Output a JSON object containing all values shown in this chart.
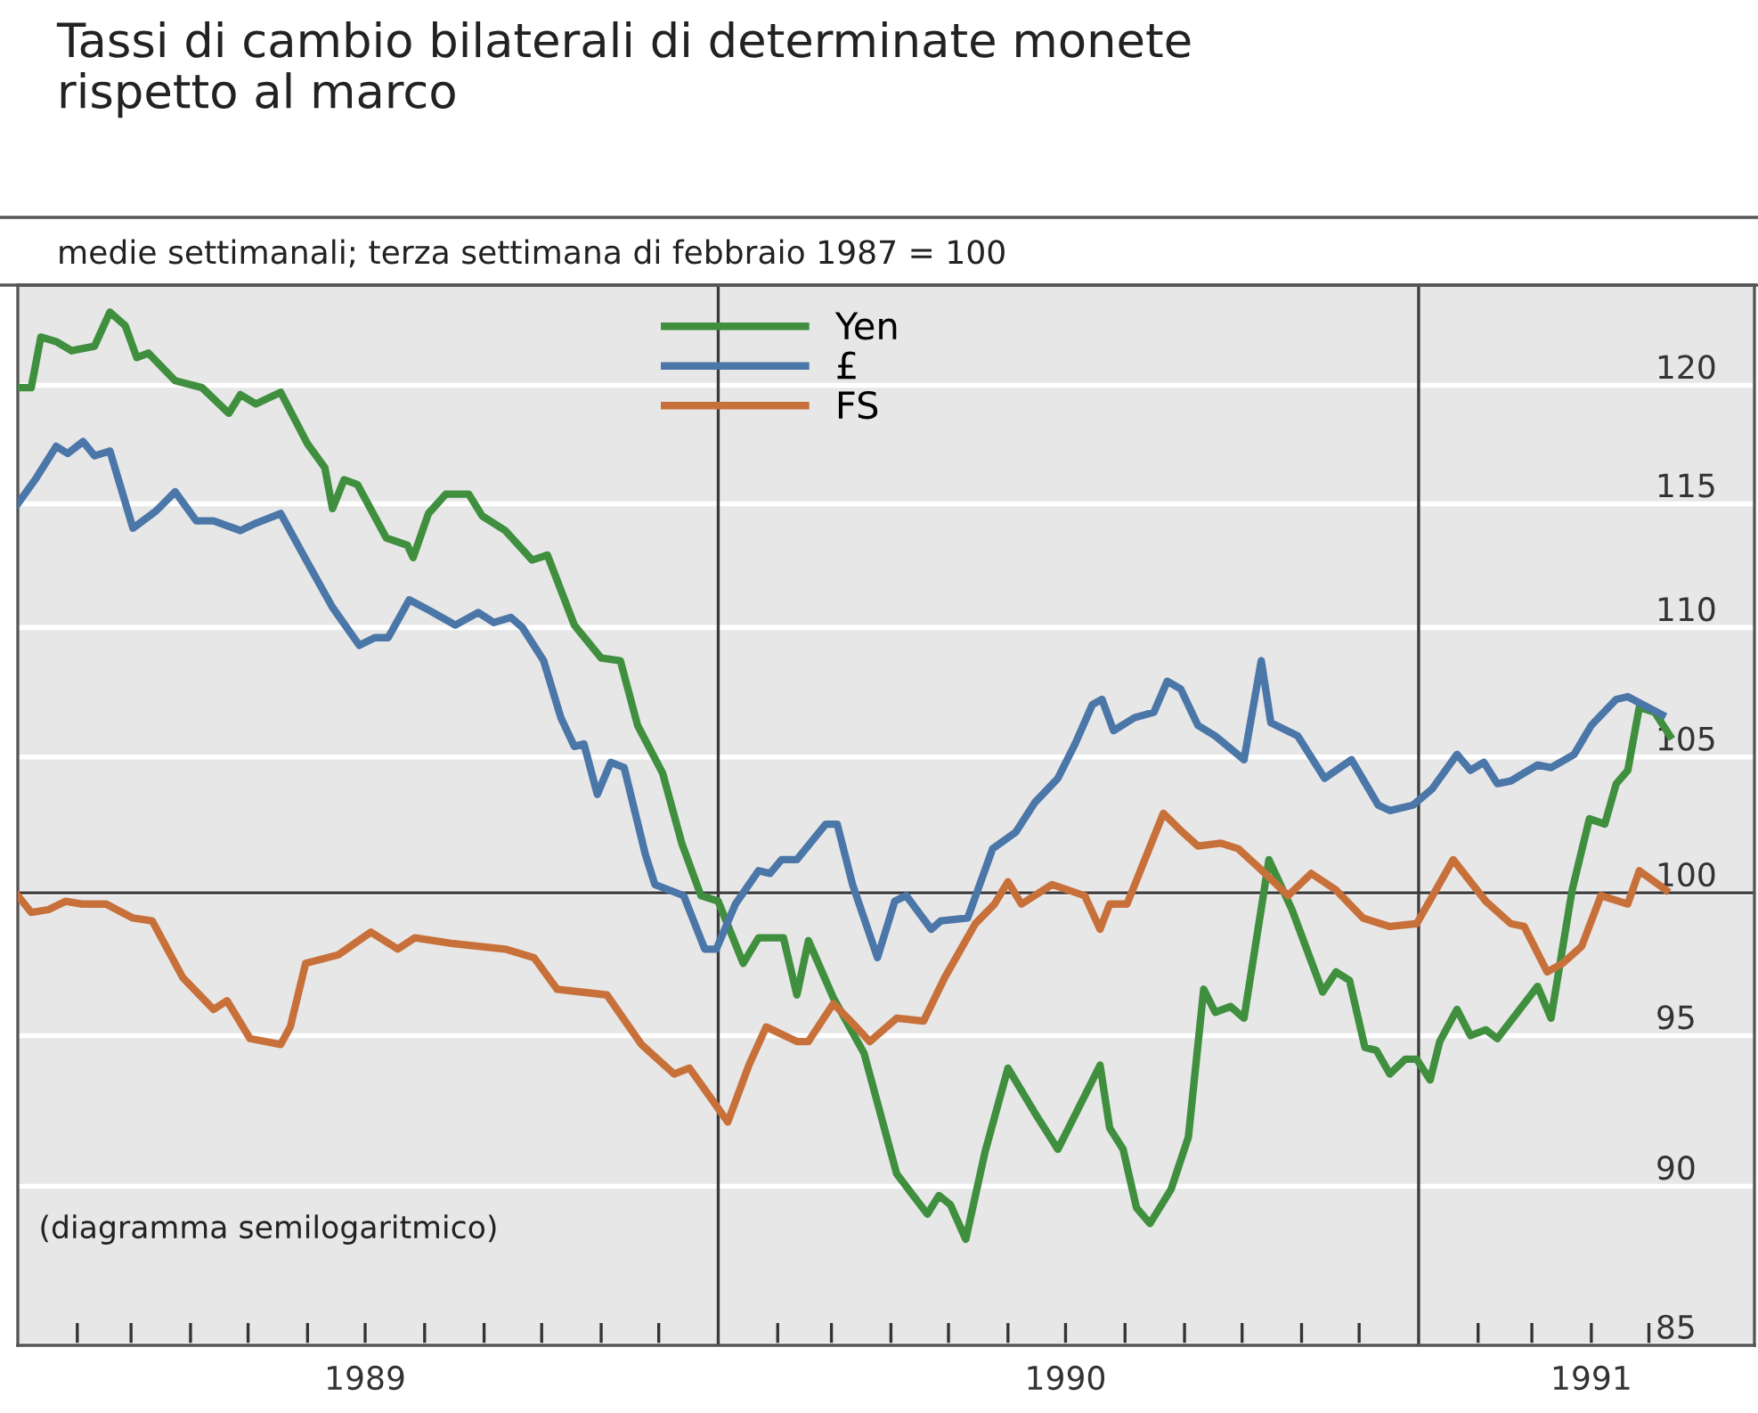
{
  "chart_data": {
    "type": "line",
    "title": "Tassi di cambio bilaterali di determinate monete\nrispetto al marco",
    "subtitle": "medie settimanali; terza settimana di febbraio 1987 = 100",
    "annotations": [
      "(diagramma semilogaritmico)"
    ],
    "log": "y",
    "grid": "y",
    "legend": "top",
    "line_style": "solid",
    "xlim": [
      "1989-01-01",
      "1991-06-25"
    ],
    "ylim": [
      85,
      124.4
    ],
    "yticks": [
      85,
      90,
      95,
      100,
      105,
      110,
      115,
      120
    ],
    "xticks": [
      {
        "value": "1989-02-01",
        "label": null
      },
      {
        "value": "1989-03-01",
        "label": null
      },
      {
        "value": "1989-04-01",
        "label": null
      },
      {
        "value": "1989-05-01",
        "label": null
      },
      {
        "value": "1989-06-01",
        "label": null
      },
      {
        "value": "1989-07-01",
        "label": "1989"
      },
      {
        "value": "1989-08-01",
        "label": null
      },
      {
        "value": "1989-09-01",
        "label": null
      },
      {
        "value": "1989-10-01",
        "label": null
      },
      {
        "value": "1989-11-01",
        "label": null
      },
      {
        "value": "1989-12-01",
        "label": null
      },
      {
        "value": "1990-02-01",
        "label": null
      },
      {
        "value": "1990-03-01",
        "label": null
      },
      {
        "value": "1990-04-01",
        "label": null
      },
      {
        "value": "1990-05-01",
        "label": null
      },
      {
        "value": "1990-06-01",
        "label": null
      },
      {
        "value": "1990-07-01",
        "label": "1990"
      },
      {
        "value": "1990-08-01",
        "label": null
      },
      {
        "value": "1990-09-01",
        "label": null
      },
      {
        "value": "1990-10-01",
        "label": null
      },
      {
        "value": "1990-11-01",
        "label": null
      },
      {
        "value": "1990-12-01",
        "label": null
      },
      {
        "value": "1991-02-01",
        "label": null
      },
      {
        "value": "1991-03-01",
        "label": null
      },
      {
        "value": "1991-04-01",
        "label": "1991"
      },
      {
        "value": "1991-05-01",
        "label": null
      }
    ],
    "ref_lines": [
      {
        "axis": "x",
        "value": "1990-01-01",
        "label": null,
        "color": "#3c3c3c"
      },
      {
        "axis": "x",
        "value": "1991-01-01",
        "label": null,
        "color": "#3c3c3c"
      },
      {
        "axis": "y",
        "value": 100,
        "label": null,
        "color": "#3c3c3c"
      }
    ],
    "series": [
      {
        "name": "Yen",
        "color": "#3f8f3f",
        "x": [
          "1989-01-03",
          "1989-01-08",
          "1989-01-13",
          "1989-01-21",
          "1989-01-29",
          "1989-02-10",
          "1989-02-18",
          "1989-02-26",
          "1989-03-04",
          "1989-03-10",
          "1989-03-24",
          "1989-04-07",
          "1989-04-21",
          "1989-04-27",
          "1989-05-05",
          "1989-05-18",
          "1989-06-01",
          "1989-06-10",
          "1989-06-14",
          "1989-06-20",
          "1989-06-27",
          "1989-07-12",
          "1989-07-23",
          "1989-07-26",
          "1989-08-03",
          "1989-08-12",
          "1989-08-24",
          "1989-08-31",
          "1989-09-12",
          "1989-09-26",
          "1989-10-04",
          "1989-10-18",
          "1989-11-01",
          "1989-11-11",
          "1989-11-20",
          "1989-12-03",
          "1989-12-13",
          "1989-12-23",
          "1990-01-01",
          "1990-01-14",
          "1990-01-22",
          "1990-02-04",
          "1990-02-11",
          "1990-02-17",
          "1990-03-02",
          "1990-03-18",
          "1990-04-04",
          "1990-04-20",
          "1990-04-26",
          "1990-05-02",
          "1990-05-10",
          "1990-05-20",
          "1990-06-01",
          "1990-06-15",
          "1990-06-27",
          "1990-07-19",
          "1990-07-24",
          "1990-07-31",
          "1990-08-07",
          "1990-08-14",
          "1990-08-25",
          "1990-09-03",
          "1990-09-11",
          "1990-09-17",
          "1990-09-25",
          "1990-10-02",
          "1990-10-15",
          "1990-10-27",
          "1990-11-12",
          "1990-11-19",
          "1990-11-26",
          "1990-12-04",
          "1990-12-10",
          "1990-12-17",
          "1990-12-25",
          "1990-12-31",
          "1991-01-07",
          "1991-01-12",
          "1991-01-21",
          "1991-01-28",
          "1991-02-05",
          "1991-02-11",
          "1991-03-04",
          "1991-03-11",
          "1991-03-22",
          "1991-03-31",
          "1991-04-08",
          "1991-04-14",
          "1991-04-20",
          "1991-04-26",
          "1991-05-04",
          "1991-05-12"
        ],
        "values": [
          119.9,
          119.9,
          122.1,
          121.9,
          121.5,
          121.7,
          123.2,
          122.6,
          121.2,
          121.4,
          120.2,
          119.9,
          118.8,
          119.6,
          119.2,
          119.7,
          117.5,
          116.5,
          114.8,
          116.0,
          115.8,
          113.6,
          113.3,
          112.8,
          114.6,
          115.4,
          115.4,
          114.5,
          113.9,
          112.7,
          112.9,
          110.1,
          108.8,
          108.7,
          106.2,
          104.4,
          101.8,
          99.9,
          99.7,
          97.5,
          98.4,
          98.4,
          96.4,
          98.3,
          96.3,
          94.4,
          90.4,
          89.1,
          89.7,
          89.4,
          88.3,
          91.1,
          93.9,
          92.4,
          91.2,
          94.0,
          91.9,
          91.2,
          89.3,
          88.8,
          89.9,
          91.6,
          96.6,
          95.8,
          96.0,
          95.6,
          101.2,
          99.4,
          96.5,
          97.2,
          96.9,
          94.6,
          94.5,
          93.7,
          94.2,
          94.2,
          93.5,
          94.8,
          95.9,
          95.0,
          95.2,
          94.9,
          96.7,
          95.6,
          100.1,
          102.7,
          102.5,
          104.0,
          104.5,
          106.9,
          106.7,
          105.8
        ]
      },
      {
        "name": "£",
        "color": "#4a76a8",
        "x": [
          "1989-01-01",
          "1989-01-10",
          "1989-01-21",
          "1989-01-27",
          "1989-02-04",
          "1989-02-10",
          "1989-02-18",
          "1989-03-02",
          "1989-03-14",
          "1989-03-24",
          "1989-04-04",
          "1989-04-13",
          "1989-04-27",
          "1989-05-05",
          "1989-05-18",
          "1989-06-01",
          "1989-06-14",
          "1989-06-28",
          "1989-07-06",
          "1989-07-13",
          "1989-07-24",
          "1989-08-03",
          "1989-08-17",
          "1989-08-29",
          "1989-09-06",
          "1989-09-15",
          "1989-09-21",
          "1989-10-02",
          "1989-10-11",
          "1989-10-18",
          "1989-10-23",
          "1989-10-30",
          "1989-11-06",
          "1989-11-13",
          "1989-11-24",
          "1989-11-29",
          "1989-12-14",
          "1989-12-25",
          "1989-12-31",
          "1990-01-10",
          "1990-01-22",
          "1990-01-28",
          "1990-02-03",
          "1990-02-11",
          "1990-02-26",
          "1990-03-04",
          "1990-03-12",
          "1990-03-25",
          "1990-04-03",
          "1990-04-09",
          "1990-04-22",
          "1990-04-27",
          "1990-05-11",
          "1990-05-24",
          "1990-06-05",
          "1990-06-15",
          "1990-06-27",
          "1990-07-06",
          "1990-07-15",
          "1990-07-20",
          "1990-07-26",
          "1990-08-06",
          "1990-08-16",
          "1990-08-23",
          "1990-08-30",
          "1990-09-08",
          "1990-09-17",
          "1990-10-02",
          "1990-10-11",
          "1990-10-16",
          "1990-10-30",
          "1990-11-13",
          "1990-11-27",
          "1990-12-11",
          "1990-12-17",
          "1990-12-29",
          "1991-01-08",
          "1991-01-21",
          "1991-01-28",
          "1991-02-04",
          "1991-02-11",
          "1991-02-18",
          "1991-03-04",
          "1991-03-11",
          "1991-03-23",
          "1991-04-01",
          "1991-04-14",
          "1991-04-20",
          "1991-05-08"
        ],
        "values": [
          115.0,
          116.0,
          117.4,
          117.1,
          117.6,
          117.0,
          117.2,
          114.0,
          114.7,
          115.5,
          114.3,
          114.3,
          113.9,
          114.2,
          114.6,
          112.6,
          110.8,
          109.3,
          109.6,
          109.6,
          111.1,
          110.7,
          110.1,
          110.6,
          110.2,
          110.4,
          110.0,
          108.7,
          106.5,
          105.4,
          105.5,
          103.6,
          104.8,
          104.6,
          101.4,
          100.3,
          99.9,
          98.0,
          98.0,
          99.6,
          100.8,
          100.7,
          101.2,
          101.2,
          102.5,
          102.5,
          100.3,
          97.7,
          99.7,
          99.9,
          98.7,
          99.0,
          99.1,
          101.6,
          102.2,
          103.3,
          104.2,
          105.5,
          107.0,
          107.2,
          106.0,
          106.5,
          106.7,
          107.9,
          107.6,
          106.2,
          105.8,
          104.9,
          108.7,
          106.3,
          105.8,
          104.2,
          104.9,
          103.2,
          103.0,
          103.2,
          103.8,
          105.1,
          104.5,
          104.8,
          104.0,
          104.1,
          104.7,
          104.6,
          105.1,
          106.2,
          107.2,
          107.3,
          106.6
        ]
      },
      {
        "name": "FS",
        "color": "#c8703a",
        "x": [
          "1989-01-01",
          "1989-01-08",
          "1989-01-17",
          "1989-01-26",
          "1989-02-03",
          "1989-02-16",
          "1989-03-02",
          "1989-03-12",
          "1989-03-28",
          "1989-04-13",
          "1989-04-20",
          "1989-05-02",
          "1989-05-18",
          "1989-05-23",
          "1989-05-31",
          "1989-06-17",
          "1989-07-04",
          "1989-07-18",
          "1989-07-27",
          "1989-08-15",
          "1989-09-12",
          "1989-09-27",
          "1989-10-09",
          "1989-11-04",
          "1989-11-22",
          "1989-12-09",
          "1989-12-17",
          "1989-12-27",
          "1990-01-06",
          "1990-01-17",
          "1990-01-26",
          "1990-02-11",
          "1990-02-17",
          "1990-03-02",
          "1990-03-11",
          "1990-03-21",
          "1990-04-04",
          "1990-04-18",
          "1990-04-29",
          "1990-05-15",
          "1990-05-25",
          "1990-06-01",
          "1990-06-08",
          "1990-06-24",
          "1990-07-11",
          "1990-07-19",
          "1990-07-24",
          "1990-08-02",
          "1990-08-21",
          "1990-08-31",
          "1990-09-08",
          "1990-09-20",
          "1990-09-29",
          "1990-10-13",
          "1990-10-25",
          "1990-11-06",
          "1990-11-19",
          "1990-12-03",
          "1990-12-17",
          "1990-12-31",
          "1991-01-19",
          "1991-02-05",
          "1991-02-18",
          "1991-02-25",
          "1991-03-09",
          "1991-03-17",
          "1991-03-27",
          "1991-04-06",
          "1991-04-20",
          "1991-04-26",
          "1991-05-10"
        ],
        "values": [
          99.9,
          99.3,
          99.4,
          99.7,
          99.6,
          99.6,
          99.1,
          99.0,
          97.0,
          95.9,
          96.2,
          94.9,
          94.7,
          95.3,
          97.5,
          97.8,
          98.6,
          98.0,
          98.4,
          98.2,
          98.0,
          97.7,
          96.6,
          96.4,
          94.7,
          93.7,
          93.9,
          93.0,
          92.1,
          94.0,
          95.3,
          94.8,
          94.8,
          96.1,
          95.5,
          94.8,
          95.6,
          95.5,
          97.0,
          98.9,
          99.6,
          100.4,
          99.6,
          100.3,
          99.9,
          98.7,
          99.6,
          99.6,
          102.9,
          102.2,
          101.7,
          101.8,
          101.6,
          100.7,
          99.9,
          100.7,
          100.1,
          99.1,
          98.8,
          98.9,
          101.2,
          99.7,
          98.9,
          98.8,
          97.2,
          97.5,
          98.1,
          99.9,
          99.6,
          100.8,
          100.1
        ]
      }
    ]
  }
}
